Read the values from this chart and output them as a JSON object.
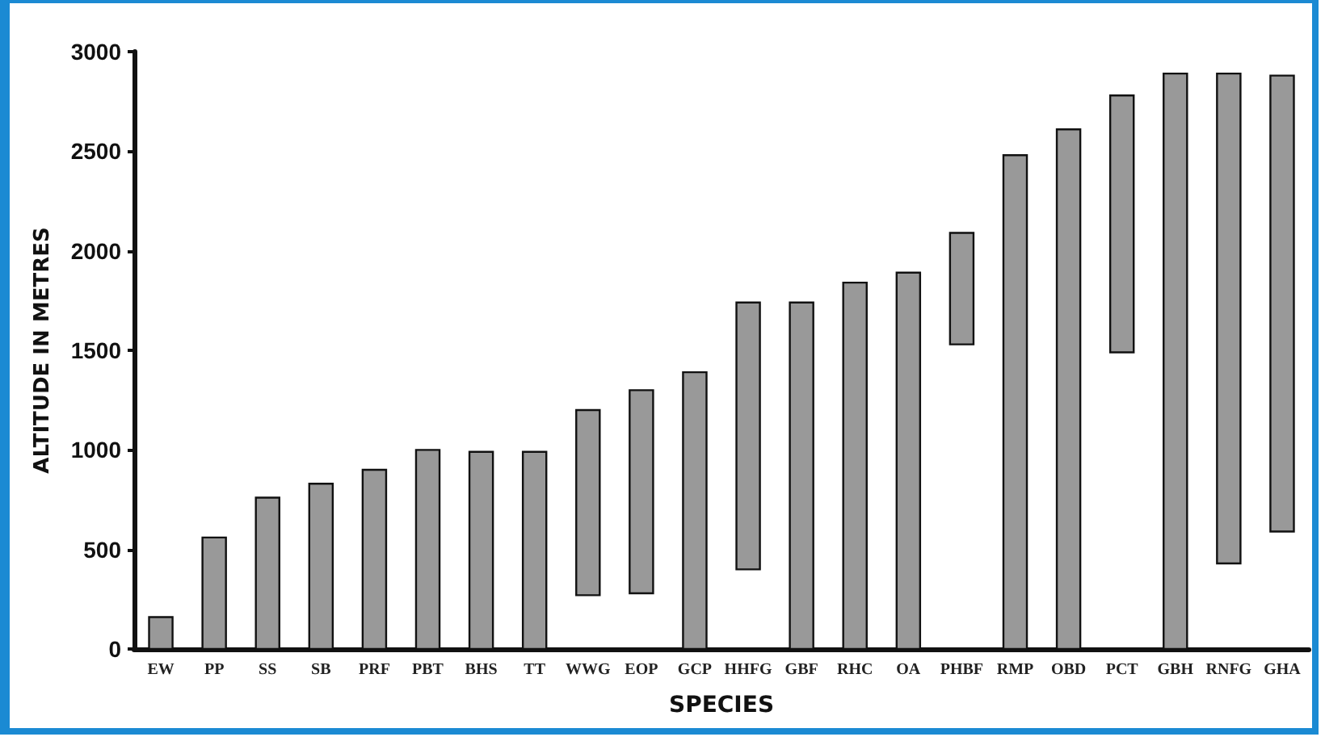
{
  "chart_data": {
    "type": "bar",
    "xlabel": "SPECIES",
    "ylabel": "ALTITUDE IN METRES",
    "categories": [
      "EW",
      "PP",
      "SS",
      "SB",
      "PRF",
      "PBT",
      "BHS",
      "TT",
      "WWG",
      "EOP",
      "GCP",
      "HHFG",
      "GBF",
      "RHC",
      "OA",
      "PHBF",
      "RMP",
      "OBD",
      "PCT",
      "GBH",
      "RNFG",
      "GHA"
    ],
    "base": [
      0,
      0,
      0,
      0,
      0,
      0,
      0,
      0,
      270,
      280,
      0,
      400,
      0,
      0,
      0,
      1530,
      0,
      0,
      1490,
      0,
      430,
      590
    ],
    "values": [
      160,
      560,
      760,
      830,
      900,
      1000,
      990,
      990,
      930,
      1020,
      1390,
      1340,
      1740,
      1840,
      1890,
      560,
      2480,
      2610,
      1290,
      2890,
      2460,
      2290
    ],
    "color": "#999999",
    "ylim": [
      0,
      3000
    ],
    "yticks": [
      0,
      500,
      1000,
      1500,
      2000,
      2500,
      3000
    ],
    "grid": false
  }
}
